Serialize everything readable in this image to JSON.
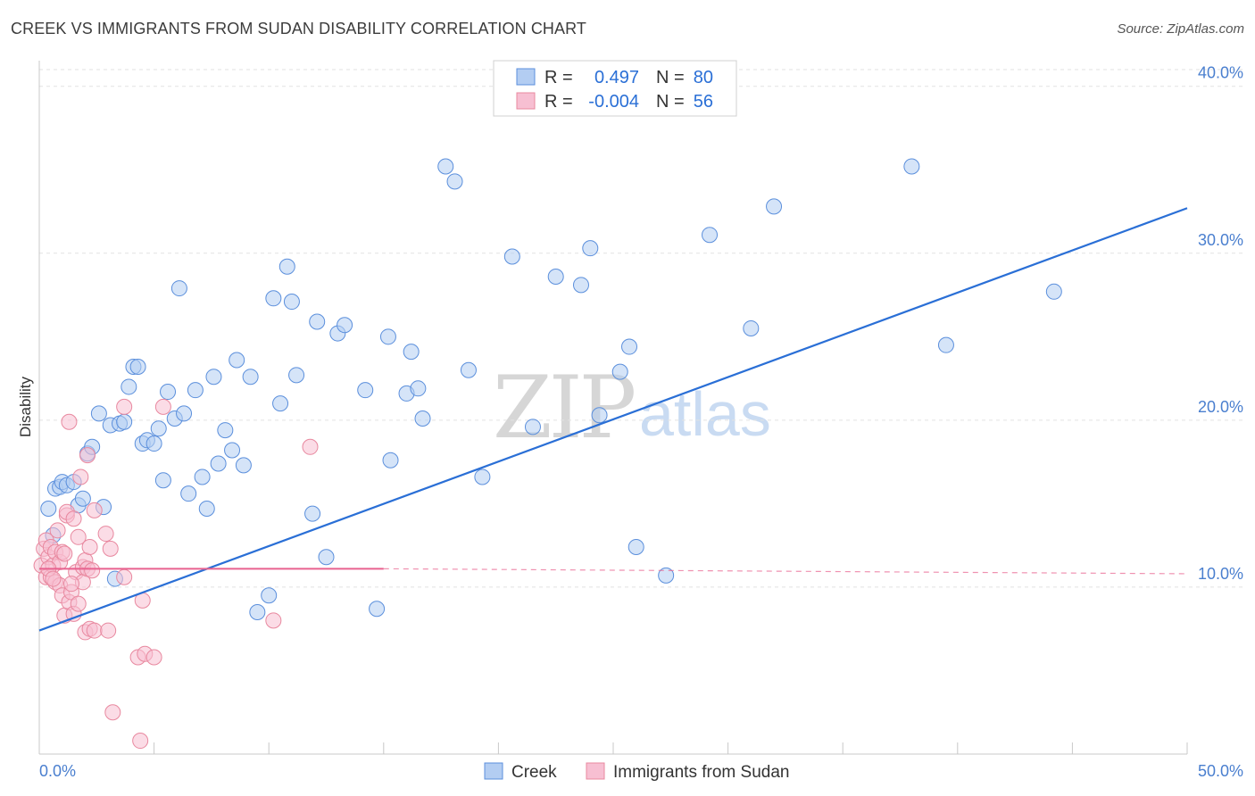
{
  "title": "CREEK VS IMMIGRANTS FROM SUDAN DISABILITY CORRELATION CHART",
  "source": "Source: ZipAtlas.com",
  "watermark": {
    "zip": "ZIP",
    "atlas": "atlas"
  },
  "colors": {
    "blue": "#2a6fd6",
    "blue_fill": "#b3cdf2",
    "pink": "#e8628f",
    "pink_fill": "#f7bfd2",
    "grid": "#e2e2e2"
  },
  "legend": {
    "r_label": "R =",
    "n_label": "N =",
    "creek_r": "0.497",
    "creek_n": "80",
    "sudan_r": "-0.004",
    "sudan_n": "56"
  },
  "bottom_legend": {
    "creek": "Creek",
    "sudan": "Immigrants from Sudan"
  },
  "chart_data": {
    "type": "scatter",
    "title": "CREEK VS IMMIGRANTS FROM SUDAN DISABILITY CORRELATION CHART",
    "xlabel": "",
    "ylabel": "Disability",
    "xlim": [
      0,
      50
    ],
    "ylim": [
      0,
      41
    ],
    "x_tick_labels": [
      "0.0%",
      "50.0%"
    ],
    "y_ticks": [
      10,
      20,
      30,
      40
    ],
    "y_tick_labels": [
      "10.0%",
      "20.0%",
      "30.0%",
      "40.0%"
    ],
    "grid": true,
    "series": [
      {
        "name": "Creek",
        "trend": {
          "x": [
            0,
            50
          ],
          "y": [
            7.4,
            32.7
          ]
        },
        "points": [
          [
            0.4,
            14.7
          ],
          [
            0.7,
            15.9
          ],
          [
            0.9,
            16.0
          ],
          [
            1.0,
            16.3
          ],
          [
            1.2,
            16.1
          ],
          [
            1.5,
            16.3
          ],
          [
            1.7,
            14.9
          ],
          [
            1.9,
            15.3
          ],
          [
            2.1,
            18.0
          ],
          [
            2.3,
            18.4
          ],
          [
            2.6,
            20.4
          ],
          [
            2.8,
            14.8
          ],
          [
            3.1,
            19.7
          ],
          [
            3.3,
            10.5
          ],
          [
            3.5,
            19.8
          ],
          [
            3.7,
            19.9
          ],
          [
            3.9,
            22.0
          ],
          [
            4.1,
            23.2
          ],
          [
            4.3,
            23.2
          ],
          [
            4.5,
            18.6
          ],
          [
            4.7,
            18.8
          ],
          [
            5.0,
            18.6
          ],
          [
            5.2,
            19.5
          ],
          [
            5.4,
            16.4
          ],
          [
            5.6,
            21.7
          ],
          [
            5.9,
            20.1
          ],
          [
            6.1,
            27.9
          ],
          [
            6.3,
            20.4
          ],
          [
            6.5,
            15.6
          ],
          [
            6.8,
            21.8
          ],
          [
            7.1,
            16.6
          ],
          [
            7.3,
            14.7
          ],
          [
            7.6,
            22.6
          ],
          [
            7.8,
            17.4
          ],
          [
            8.1,
            19.4
          ],
          [
            8.4,
            18.2
          ],
          [
            8.6,
            23.6
          ],
          [
            8.9,
            17.3
          ],
          [
            9.2,
            22.6
          ],
          [
            9.5,
            8.5
          ],
          [
            10.0,
            9.5
          ],
          [
            10.2,
            27.3
          ],
          [
            10.5,
            21.0
          ],
          [
            10.8,
            29.2
          ],
          [
            11.0,
            27.1
          ],
          [
            11.2,
            22.7
          ],
          [
            11.9,
            14.4
          ],
          [
            12.1,
            25.9
          ],
          [
            12.5,
            11.8
          ],
          [
            13.0,
            25.2
          ],
          [
            13.3,
            25.7
          ],
          [
            14.2,
            21.8
          ],
          [
            14.7,
            8.7
          ],
          [
            15.3,
            17.6
          ],
          [
            15.2,
            25.0
          ],
          [
            16.0,
            21.6
          ],
          [
            16.2,
            24.1
          ],
          [
            16.5,
            21.9
          ],
          [
            16.7,
            20.1
          ],
          [
            17.7,
            35.2
          ],
          [
            18.1,
            34.3
          ],
          [
            18.7,
            23.0
          ],
          [
            19.3,
            16.6
          ],
          [
            20.6,
            29.8
          ],
          [
            21.5,
            19.6
          ],
          [
            22.5,
            28.6
          ],
          [
            23.6,
            28.1
          ],
          [
            24.0,
            30.3
          ],
          [
            24.4,
            20.3
          ],
          [
            25.3,
            22.9
          ],
          [
            25.7,
            24.4
          ],
          [
            26.0,
            12.4
          ],
          [
            27.3,
            10.7
          ],
          [
            29.2,
            31.1
          ],
          [
            31.0,
            25.5
          ],
          [
            32.0,
            32.8
          ],
          [
            38.0,
            35.2
          ],
          [
            39.5,
            24.5
          ],
          [
            44.2,
            27.7
          ],
          [
            0.6,
            13.1
          ]
        ]
      },
      {
        "name": "Immigrants from Sudan",
        "trend": {
          "x_solid": [
            0,
            15
          ],
          "y_solid": [
            11.1,
            11.1
          ],
          "x_dashed": [
            15,
            50
          ],
          "y_dashed": [
            11.1,
            10.8
          ]
        },
        "points": [
          [
            0.1,
            11.3
          ],
          [
            0.2,
            12.3
          ],
          [
            0.3,
            12.8
          ],
          [
            0.3,
            10.6
          ],
          [
            0.4,
            11.8
          ],
          [
            0.5,
            12.4
          ],
          [
            0.5,
            10.6
          ],
          [
            0.6,
            11.3
          ],
          [
            0.7,
            10.3
          ],
          [
            0.7,
            12.1
          ],
          [
            0.8,
            13.4
          ],
          [
            0.9,
            10.1
          ],
          [
            0.9,
            11.5
          ],
          [
            1.0,
            12.1
          ],
          [
            1.0,
            9.5
          ],
          [
            1.1,
            12.0
          ],
          [
            1.1,
            8.3
          ],
          [
            1.2,
            14.3
          ],
          [
            1.2,
            14.5
          ],
          [
            1.3,
            9.1
          ],
          [
            1.3,
            19.9
          ],
          [
            1.4,
            9.7
          ],
          [
            1.5,
            14.1
          ],
          [
            1.5,
            8.4
          ],
          [
            1.6,
            10.9
          ],
          [
            1.7,
            9.0
          ],
          [
            1.7,
            13.0
          ],
          [
            1.8,
            16.6
          ],
          [
            1.9,
            11.2
          ],
          [
            1.9,
            10.3
          ],
          [
            2.0,
            11.6
          ],
          [
            2.0,
            7.3
          ],
          [
            2.1,
            17.9
          ],
          [
            2.1,
            11.1
          ],
          [
            2.2,
            12.4
          ],
          [
            2.2,
            7.5
          ],
          [
            2.3,
            11.0
          ],
          [
            2.4,
            7.4
          ],
          [
            2.4,
            14.6
          ],
          [
            2.9,
            13.2
          ],
          [
            3.0,
            7.4
          ],
          [
            3.1,
            12.3
          ],
          [
            3.2,
            2.5
          ],
          [
            3.7,
            20.8
          ],
          [
            3.7,
            10.6
          ],
          [
            4.3,
            5.8
          ],
          [
            4.4,
            0.8
          ],
          [
            4.5,
            9.2
          ],
          [
            4.6,
            6.0
          ],
          [
            5.0,
            5.8
          ],
          [
            5.4,
            20.8
          ],
          [
            10.2,
            8.0
          ],
          [
            11.8,
            18.4
          ],
          [
            0.4,
            11.1
          ],
          [
            0.6,
            10.5
          ],
          [
            1.4,
            10.2
          ]
        ]
      }
    ]
  }
}
